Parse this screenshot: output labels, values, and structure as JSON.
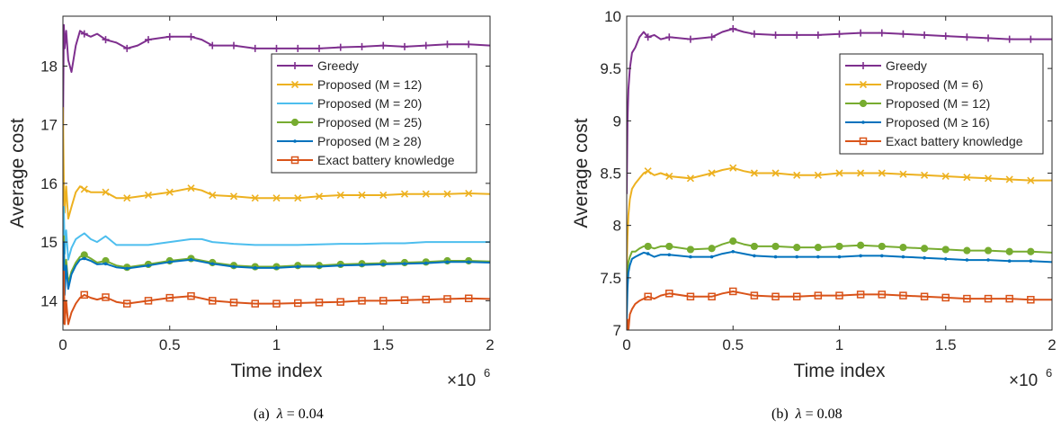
{
  "colors": {
    "greedy": "#7E2F8E",
    "yellow": "#EDB120",
    "lightblue": "#4DBEEE",
    "green": "#77AC30",
    "blue": "#0072BD",
    "orange": "#D95319",
    "axis": "#262626"
  },
  "chart_data": [
    {
      "type": "line",
      "caption_label": "(a)",
      "caption_param": "λ",
      "caption_value": "= 0.04",
      "xlabel": "Time index",
      "ylabel": "Average cost",
      "x_multiplier": "×10",
      "x_multiplier_exp": "6",
      "xlim": [
        0,
        2
      ],
      "ylim": [
        13.5,
        18.85
      ],
      "xticks": [
        0,
        0.5,
        1,
        1.5,
        2
      ],
      "xtick_labels": [
        "0",
        "0.5",
        "1",
        "1.5",
        "2"
      ],
      "yticks": [
        14,
        15,
        16,
        17,
        18
      ],
      "ytick_labels": [
        "14",
        "15",
        "16",
        "17",
        "18"
      ],
      "grid": false,
      "legend_position": "top-right",
      "series": [
        {
          "name": "Greedy",
          "color_key": "greedy",
          "marker": "plus",
          "x": [
            0,
            0.004,
            0.008,
            0.015,
            0.025,
            0.04,
            0.06,
            0.08,
            0.1,
            0.13,
            0.16,
            0.2,
            0.25,
            0.3,
            0.35,
            0.4,
            0.5,
            0.6,
            0.65,
            0.7,
            0.8,
            0.9,
            1.0,
            1.1,
            1.2,
            1.3,
            1.4,
            1.5,
            1.6,
            1.7,
            1.8,
            1.9,
            2.0
          ],
          "y": [
            16.8,
            18.7,
            18.3,
            18.6,
            18.1,
            17.9,
            18.35,
            18.6,
            18.55,
            18.5,
            18.55,
            18.45,
            18.4,
            18.3,
            18.35,
            18.45,
            18.5,
            18.5,
            18.45,
            18.35,
            18.35,
            18.3,
            18.3,
            18.3,
            18.3,
            18.32,
            18.33,
            18.35,
            18.33,
            18.35,
            18.37,
            18.37,
            18.35
          ],
          "marker_x": [
            0.1,
            0.2,
            0.3,
            0.4,
            0.5,
            0.6,
            0.7,
            0.8,
            0.9,
            1.0,
            1.1,
            1.2,
            1.3,
            1.4,
            1.5,
            1.6,
            1.7,
            1.8,
            1.9
          ]
        },
        {
          "name": "Proposed (M = 12)",
          "color_key": "yellow",
          "marker": "x",
          "x": [
            0,
            0.004,
            0.008,
            0.015,
            0.025,
            0.04,
            0.06,
            0.08,
            0.1,
            0.13,
            0.16,
            0.2,
            0.25,
            0.3,
            0.4,
            0.5,
            0.6,
            0.65,
            0.7,
            0.8,
            0.9,
            1.0,
            1.1,
            1.2,
            1.3,
            1.4,
            1.5,
            1.6,
            1.7,
            1.8,
            1.9,
            2.0
          ],
          "y": [
            17.3,
            16.0,
            15.5,
            15.95,
            15.4,
            15.6,
            15.85,
            15.95,
            15.9,
            15.85,
            15.85,
            15.85,
            15.75,
            15.75,
            15.8,
            15.85,
            15.92,
            15.88,
            15.8,
            15.78,
            15.75,
            15.75,
            15.75,
            15.78,
            15.8,
            15.8,
            15.8,
            15.82,
            15.82,
            15.82,
            15.83,
            15.82
          ],
          "marker_x": [
            0.1,
            0.2,
            0.3,
            0.4,
            0.5,
            0.6,
            0.7,
            0.8,
            0.9,
            1.0,
            1.1,
            1.2,
            1.3,
            1.4,
            1.5,
            1.6,
            1.7,
            1.8,
            1.9
          ]
        },
        {
          "name": "Proposed (M = 20)",
          "color_key": "lightblue",
          "marker": "none",
          "x": [
            0,
            0.004,
            0.008,
            0.015,
            0.025,
            0.04,
            0.06,
            0.08,
            0.1,
            0.13,
            0.16,
            0.2,
            0.25,
            0.3,
            0.4,
            0.5,
            0.6,
            0.65,
            0.7,
            0.8,
            0.9,
            1.0,
            1.1,
            1.2,
            1.3,
            1.4,
            1.5,
            1.6,
            1.7,
            1.8,
            1.9,
            2.0
          ],
          "y": [
            15.3,
            15.6,
            14.8,
            15.2,
            14.7,
            14.9,
            15.05,
            15.1,
            15.15,
            15.05,
            15.0,
            15.1,
            14.95,
            14.95,
            14.95,
            15.0,
            15.05,
            15.05,
            15.0,
            14.97,
            14.95,
            14.95,
            14.95,
            14.96,
            14.97,
            14.97,
            14.98,
            14.98,
            15.0,
            15.0,
            15.0,
            15.0
          ],
          "marker_x": []
        },
        {
          "name": "Proposed (M = 25)",
          "color_key": "green",
          "marker": "circle",
          "x": [
            0,
            0.004,
            0.008,
            0.015,
            0.025,
            0.04,
            0.06,
            0.08,
            0.1,
            0.13,
            0.16,
            0.2,
            0.25,
            0.3,
            0.4,
            0.5,
            0.6,
            0.7,
            0.8,
            0.9,
            1.0,
            1.1,
            1.2,
            1.3,
            1.4,
            1.5,
            1.6,
            1.7,
            1.8,
            1.9,
            2.0
          ],
          "y": [
            14.3,
            15.1,
            14.2,
            14.7,
            14.3,
            14.5,
            14.65,
            14.75,
            14.78,
            14.72,
            14.65,
            14.68,
            14.6,
            14.57,
            14.62,
            14.68,
            14.72,
            14.65,
            14.6,
            14.58,
            14.58,
            14.6,
            14.6,
            14.62,
            14.63,
            14.64,
            14.65,
            14.66,
            14.68,
            14.68,
            14.67
          ],
          "marker_x": [
            0.1,
            0.2,
            0.3,
            0.4,
            0.5,
            0.6,
            0.7,
            0.8,
            0.9,
            1.0,
            1.1,
            1.2,
            1.3,
            1.4,
            1.5,
            1.6,
            1.7,
            1.8,
            1.9
          ]
        },
        {
          "name": "Proposed (M ≥ 28)",
          "color_key": "blue",
          "marker": "dot",
          "x": [
            0,
            0.004,
            0.008,
            0.015,
            0.025,
            0.04,
            0.06,
            0.08,
            0.1,
            0.13,
            0.16,
            0.2,
            0.25,
            0.3,
            0.4,
            0.5,
            0.6,
            0.7,
            0.8,
            0.9,
            1.0,
            1.1,
            1.2,
            1.3,
            1.4,
            1.5,
            1.6,
            1.7,
            1.8,
            1.9,
            2.0
          ],
          "y": [
            14.2,
            15.0,
            14.1,
            14.6,
            14.2,
            14.45,
            14.6,
            14.7,
            14.72,
            14.68,
            14.62,
            14.63,
            14.57,
            14.55,
            14.6,
            14.66,
            14.7,
            14.63,
            14.58,
            14.56,
            14.56,
            14.58,
            14.58,
            14.6,
            14.61,
            14.62,
            14.63,
            14.64,
            14.66,
            14.66,
            14.65
          ],
          "marker_x": [
            0.1,
            0.2,
            0.3,
            0.4,
            0.5,
            0.6,
            0.7,
            0.8,
            0.9,
            1.0,
            1.1,
            1.2,
            1.3,
            1.4,
            1.5,
            1.6,
            1.7,
            1.8,
            1.9
          ]
        },
        {
          "name": "Exact battery knowledge",
          "color_key": "orange",
          "marker": "square",
          "x": [
            0,
            0.004,
            0.008,
            0.015,
            0.025,
            0.04,
            0.06,
            0.08,
            0.1,
            0.13,
            0.16,
            0.2,
            0.25,
            0.3,
            0.4,
            0.5,
            0.6,
            0.7,
            0.8,
            0.9,
            1.0,
            1.1,
            1.2,
            1.3,
            1.4,
            1.5,
            1.6,
            1.7,
            1.8,
            1.9,
            2.0
          ],
          "y": [
            13.6,
            14.5,
            13.6,
            14.0,
            13.6,
            13.8,
            13.95,
            14.05,
            14.1,
            14.05,
            14.02,
            14.06,
            13.98,
            13.95,
            14.0,
            14.05,
            14.08,
            14.0,
            13.97,
            13.95,
            13.95,
            13.96,
            13.97,
            13.98,
            14.0,
            14.0,
            14.01,
            14.02,
            14.03,
            14.04,
            14.03
          ],
          "marker_x": [
            0.1,
            0.2,
            0.3,
            0.4,
            0.5,
            0.6,
            0.7,
            0.8,
            0.9,
            1.0,
            1.1,
            1.2,
            1.3,
            1.4,
            1.5,
            1.6,
            1.7,
            1.8,
            1.9
          ]
        }
      ]
    },
    {
      "type": "line",
      "caption_label": "(b)",
      "caption_param": "λ",
      "caption_value": "= 0.08",
      "xlabel": "Time index",
      "ylabel": "Average cost",
      "x_multiplier": "×10",
      "x_multiplier_exp": "6",
      "xlim": [
        0,
        2
      ],
      "ylim": [
        7,
        10
      ],
      "xticks": [
        0,
        0.5,
        1,
        1.5,
        2
      ],
      "xtick_labels": [
        "0",
        "0.5",
        "1",
        "1.5",
        "2"
      ],
      "yticks": [
        7,
        7.5,
        8,
        8.5,
        9,
        9.5,
        10
      ],
      "ytick_labels": [
        "7",
        "7.5",
        "8",
        "8.5",
        "9",
        "9.5",
        "10"
      ],
      "grid": false,
      "legend_position": "top-right",
      "series": [
        {
          "name": "Greedy",
          "color_key": "greedy",
          "marker": "plus",
          "x": [
            0,
            0.004,
            0.008,
            0.015,
            0.025,
            0.04,
            0.06,
            0.08,
            0.1,
            0.13,
            0.16,
            0.2,
            0.3,
            0.4,
            0.45,
            0.5,
            0.55,
            0.6,
            0.7,
            0.8,
            0.9,
            1.0,
            1.1,
            1.2,
            1.3,
            1.4,
            1.5,
            1.6,
            1.7,
            1.8,
            1.9,
            2.0
          ],
          "y": [
            8.3,
            9.0,
            9.3,
            9.5,
            9.65,
            9.7,
            9.8,
            9.85,
            9.8,
            9.82,
            9.78,
            9.8,
            9.78,
            9.8,
            9.85,
            9.88,
            9.85,
            9.83,
            9.82,
            9.82,
            9.82,
            9.83,
            9.84,
            9.84,
            9.83,
            9.82,
            9.81,
            9.8,
            9.79,
            9.78,
            9.78,
            9.78
          ],
          "marker_x": [
            0.1,
            0.2,
            0.3,
            0.4,
            0.5,
            0.6,
            0.7,
            0.8,
            0.9,
            1.0,
            1.1,
            1.2,
            1.3,
            1.4,
            1.5,
            1.6,
            1.7,
            1.8,
            1.9
          ]
        },
        {
          "name": "Proposed (M = 6)",
          "color_key": "yellow",
          "marker": "x",
          "x": [
            0,
            0.004,
            0.008,
            0.015,
            0.025,
            0.04,
            0.06,
            0.08,
            0.1,
            0.13,
            0.16,
            0.2,
            0.3,
            0.4,
            0.45,
            0.5,
            0.55,
            0.6,
            0.7,
            0.8,
            0.9,
            1.0,
            1.1,
            1.2,
            1.3,
            1.4,
            1.5,
            1.6,
            1.7,
            1.8,
            1.9,
            2.0
          ],
          "y": [
            7.6,
            7.9,
            8.1,
            8.25,
            8.35,
            8.4,
            8.45,
            8.5,
            8.52,
            8.48,
            8.5,
            8.47,
            8.45,
            8.5,
            8.53,
            8.55,
            8.52,
            8.5,
            8.5,
            8.48,
            8.48,
            8.5,
            8.5,
            8.5,
            8.49,
            8.48,
            8.47,
            8.46,
            8.45,
            8.44,
            8.43,
            8.43
          ],
          "marker_x": [
            0.1,
            0.2,
            0.3,
            0.4,
            0.5,
            0.6,
            0.7,
            0.8,
            0.9,
            1.0,
            1.1,
            1.2,
            1.3,
            1.4,
            1.5,
            1.6,
            1.7,
            1.8,
            1.9
          ]
        },
        {
          "name": "Proposed (M = 12)",
          "color_key": "green",
          "marker": "circle",
          "x": [
            0,
            0.004,
            0.008,
            0.015,
            0.025,
            0.04,
            0.06,
            0.08,
            0.1,
            0.13,
            0.16,
            0.2,
            0.3,
            0.4,
            0.45,
            0.5,
            0.55,
            0.6,
            0.7,
            0.8,
            0.9,
            1.0,
            1.1,
            1.2,
            1.3,
            1.4,
            1.5,
            1.6,
            1.7,
            1.8,
            1.9,
            2.0
          ],
          "y": [
            7.2,
            7.5,
            7.65,
            7.7,
            7.75,
            7.75,
            7.78,
            7.8,
            7.8,
            7.78,
            7.8,
            7.8,
            7.77,
            7.78,
            7.82,
            7.85,
            7.82,
            7.8,
            7.8,
            7.79,
            7.79,
            7.8,
            7.81,
            7.8,
            7.79,
            7.78,
            7.77,
            7.76,
            7.76,
            7.75,
            7.75,
            7.74
          ],
          "marker_x": [
            0.1,
            0.2,
            0.3,
            0.4,
            0.5,
            0.6,
            0.7,
            0.8,
            0.9,
            1.0,
            1.1,
            1.2,
            1.3,
            1.4,
            1.5,
            1.6,
            1.7,
            1.8,
            1.9
          ]
        },
        {
          "name": "Proposed (M ≥ 16)",
          "color_key": "blue",
          "marker": "dot",
          "x": [
            0,
            0.004,
            0.008,
            0.015,
            0.025,
            0.04,
            0.06,
            0.08,
            0.1,
            0.13,
            0.16,
            0.2,
            0.3,
            0.4,
            0.45,
            0.5,
            0.55,
            0.6,
            0.7,
            0.8,
            0.9,
            1.0,
            1.1,
            1.2,
            1.3,
            1.4,
            1.5,
            1.6,
            1.7,
            1.8,
            1.9,
            2.0
          ],
          "y": [
            7.1,
            7.4,
            7.55,
            7.62,
            7.68,
            7.7,
            7.72,
            7.74,
            7.73,
            7.7,
            7.72,
            7.72,
            7.7,
            7.7,
            7.73,
            7.75,
            7.73,
            7.71,
            7.7,
            7.7,
            7.7,
            7.7,
            7.71,
            7.71,
            7.7,
            7.69,
            7.68,
            7.67,
            7.67,
            7.66,
            7.66,
            7.65
          ],
          "marker_x": [
            0.1,
            0.2,
            0.3,
            0.4,
            0.5,
            0.6,
            0.7,
            0.8,
            0.9,
            1.0,
            1.1,
            1.2,
            1.3,
            1.4,
            1.5,
            1.6,
            1.7,
            1.8,
            1.9
          ]
        },
        {
          "name": "Exact battery knowledge",
          "color_key": "orange",
          "marker": "square",
          "x": [
            0,
            0.004,
            0.008,
            0.015,
            0.025,
            0.04,
            0.06,
            0.08,
            0.1,
            0.13,
            0.16,
            0.2,
            0.3,
            0.4,
            0.45,
            0.5,
            0.55,
            0.6,
            0.7,
            0.8,
            0.9,
            1.0,
            1.1,
            1.2,
            1.3,
            1.4,
            1.5,
            1.6,
            1.7,
            1.8,
            1.9,
            2.0
          ],
          "y": [
            7.0,
            7.1,
            7.0,
            7.15,
            7.2,
            7.25,
            7.28,
            7.3,
            7.32,
            7.3,
            7.33,
            7.35,
            7.32,
            7.32,
            7.35,
            7.37,
            7.35,
            7.33,
            7.32,
            7.32,
            7.33,
            7.33,
            7.34,
            7.34,
            7.33,
            7.32,
            7.31,
            7.3,
            7.3,
            7.3,
            7.29,
            7.29
          ],
          "marker_x": [
            0.1,
            0.2,
            0.3,
            0.4,
            0.5,
            0.6,
            0.7,
            0.8,
            0.9,
            1.0,
            1.1,
            1.2,
            1.3,
            1.4,
            1.5,
            1.6,
            1.7,
            1.8,
            1.9
          ]
        }
      ]
    }
  ]
}
